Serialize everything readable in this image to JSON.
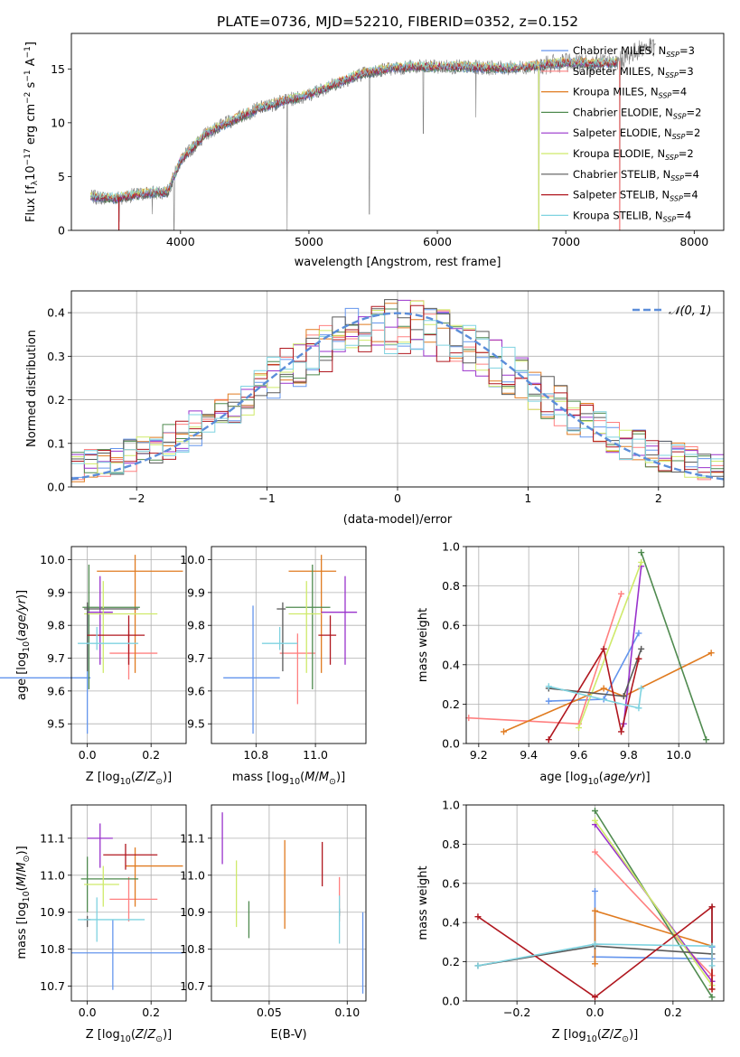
{
  "figure_title": "PLATE=0736, MJD=52210, FIBERID=0352, z=0.152",
  "colors": {
    "chabrier_miles": "#6495ED",
    "salpeter_miles": "#FF8080",
    "kroupa_miles": "#E07B20",
    "chabrier_elodie": "#4F8A4F",
    "salpeter_elodie": "#9932CC",
    "kroupa_elodie": "#CFEA6A",
    "chabrier_stelib": "#5A5A5A",
    "salpeter_stelib": "#B0171F",
    "kroupa_stelib": "#7FD3E0",
    "pink": "#E680C0",
    "data_spectrum": "#808080",
    "normal_curve": "#5B8DD9",
    "grid": "#B0B0B0"
  },
  "chart_data": [
    {
      "id": "spectrum",
      "type": "line",
      "xlabel": "wavelength [Angstrom, rest frame]",
      "ylabel": "Flux [f_λ10^-17 erg cm^-2 s^-1 A^-1]",
      "xlim": [
        3150,
        8230
      ],
      "ylim": [
        0,
        18.3
      ],
      "xticks": [
        4000,
        5000,
        6000,
        7000,
        8000
      ],
      "yticks": [
        0,
        5,
        10,
        15
      ],
      "grid": false,
      "legend_position": "top-right",
      "legend": [
        {
          "label": "Chabrier MILES, N_SSP=3",
          "color": "#6495ED"
        },
        {
          "label": "Salpeter MILES, N_SSP=3",
          "color": "#FF8080"
        },
        {
          "label": "Kroupa MILES, N_SSP=4",
          "color": "#E07B20"
        },
        {
          "label": "Chabrier ELODIE, N_SSP=2",
          "color": "#4F8A4F"
        },
        {
          "label": "Salpeter ELODIE, N_SSP=2",
          "color": "#9932CC"
        },
        {
          "label": "Kroupa ELODIE, N_SSP=2",
          "color": "#CFEA6A"
        },
        {
          "label": "Chabrier STELIB, N_SSP=4",
          "color": "#5A5A5A"
        },
        {
          "label": "Salpeter STELIB, N_SSP=4",
          "color": "#B0171F"
        },
        {
          "label": "Kroupa STELIB, N_SSP=4",
          "color": "#7FD3E0"
        }
      ],
      "continuum_anchors": [
        [
          3300,
          3.1
        ],
        [
          3500,
          3.0
        ],
        [
          3700,
          3.4
        ],
        [
          3900,
          3.6
        ],
        [
          4000,
          6.5
        ],
        [
          4200,
          9.0
        ],
        [
          4400,
          10.2
        ],
        [
          4600,
          11.3
        ],
        [
          4800,
          12.0
        ],
        [
          5000,
          12.6
        ],
        [
          5200,
          13.6
        ],
        [
          5400,
          14.5
        ],
        [
          5600,
          15.0
        ],
        [
          5800,
          15.2
        ],
        [
          6000,
          15.2
        ],
        [
          6200,
          15.2
        ],
        [
          6400,
          15.1
        ],
        [
          6600,
          15.1
        ],
        [
          6800,
          15.3
        ],
        [
          7000,
          15.6
        ],
        [
          7200,
          15.5
        ],
        [
          7400,
          15.6
        ],
        [
          7600,
          17.0
        ]
      ],
      "model_start": 3300,
      "model_end": 7400,
      "spikes": [
        [
          3520,
          0.8
        ],
        [
          3780,
          1.5
        ],
        [
          3950,
          0.0
        ],
        [
          4830,
          0.0
        ],
        [
          5470,
          1.5
        ],
        [
          5890,
          9.0
        ],
        [
          6300,
          10.5
        ],
        [
          6790,
          0.0
        ],
        [
          7420,
          0.0
        ]
      ]
    },
    {
      "id": "residuals",
      "type": "area",
      "xlabel": "(data-model)/error",
      "ylabel": "Normed distribution",
      "xlim": [
        -2.5,
        2.5
      ],
      "ylim": [
        0,
        0.45
      ],
      "xticks": [
        -2,
        -1,
        0,
        1,
        2
      ],
      "yticks": [
        0.0,
        0.1,
        0.2,
        0.3,
        0.4
      ],
      "grid": true,
      "legend_position": "top-right",
      "legend": [
        {
          "label": "𝒩(0, 1)",
          "color": "#5B8DD9"
        }
      ],
      "bin_width": 0.1,
      "bin_start": -2.5
    },
    {
      "id": "age_vs_Z",
      "type": "scatter",
      "xlabel": "Z [log10(Z/Z⊙)]",
      "ylabel": "age  [log10(age/yr)]",
      "xlim": [
        -0.05,
        0.31
      ],
      "ylim": [
        9.44,
        10.04
      ],
      "xticks": [
        0.0,
        0.2
      ],
      "yticks": [
        9.5,
        9.6,
        9.7,
        9.8,
        9.9,
        10.0
      ],
      "grid": true,
      "points": [
        {
          "color": "#6495ED",
          "x": 0.0,
          "xerr": [
            0.29,
            0.01
          ],
          "y": 9.64,
          "yerr": [
            0.17,
            0.22
          ]
        },
        {
          "color": "#FF8080",
          "x": 0.13,
          "xerr": [
            0.06,
            0.09
          ],
          "y": 9.715,
          "yerr": [
            0.08,
            0.07
          ]
        },
        {
          "color": "#E07B20",
          "x": 0.15,
          "xerr": [
            0.12,
            0.15
          ],
          "y": 9.965,
          "yerr": [
            0.31,
            0.05
          ]
        },
        {
          "color": "#4F8A4F",
          "x": 0.005,
          "xerr": [
            0.02,
            0.16
          ],
          "y": 9.855,
          "yerr": [
            0.25,
            0.13
          ]
        },
        {
          "color": "#9932CC",
          "x": 0.04,
          "xerr": [
            0.04,
            0.04
          ],
          "y": 9.84,
          "yerr": [
            0.16,
            0.11
          ]
        },
        {
          "color": "#CFEA6A",
          "x": 0.05,
          "xerr": [
            0.06,
            0.17
          ],
          "y": 9.835,
          "yerr": [
            0.18,
            0.1
          ]
        },
        {
          "color": "#5A5A5A",
          "x": 0.0,
          "xerr": [
            0.01,
            0.16
          ],
          "y": 9.85,
          "yerr": [
            0.19,
            0.02
          ]
        },
        {
          "color": "#B0171F",
          "x": 0.13,
          "xerr": [
            0.13,
            0.05
          ],
          "y": 9.77,
          "yerr": [
            0.09,
            0.06
          ]
        },
        {
          "color": "#7FD3E0",
          "x": 0.03,
          "xerr": [
            0.06,
            0.13
          ],
          "y": 9.745,
          "yerr": [
            0.02,
            0.05
          ]
        }
      ]
    },
    {
      "id": "age_vs_mass",
      "type": "scatter",
      "xlabel": "mass [log10(M/M⊙)]",
      "ylabel": "",
      "xlim": [
        10.65,
        11.17
      ],
      "ylim": [
        9.44,
        10.04
      ],
      "xticks": [
        10.8,
        11.0
      ],
      "yticks": [
        9.5,
        9.6,
        9.7,
        9.8,
        9.9,
        10.0
      ],
      "grid": true,
      "points": [
        {
          "color": "#6495ED",
          "x": 10.79,
          "xerr": [
            0.1,
            0.09
          ],
          "y": 9.64,
          "yerr": [
            0.17,
            0.22
          ]
        },
        {
          "color": "#FF8080",
          "x": 10.94,
          "xerr": [
            0.06,
            0.06
          ],
          "y": 9.715,
          "yerr": [
            0.155,
            0.06
          ]
        },
        {
          "color": "#E07B20",
          "x": 11.02,
          "xerr": [
            0.11,
            0.05
          ],
          "y": 9.965,
          "yerr": [
            0.31,
            0.05
          ]
        },
        {
          "color": "#4F8A4F",
          "x": 10.99,
          "xerr": [
            0.09,
            0.06
          ],
          "y": 9.855,
          "yerr": [
            0.25,
            0.13
          ]
        },
        {
          "color": "#9932CC",
          "x": 11.1,
          "xerr": [
            0.08,
            0.04
          ],
          "y": 9.84,
          "yerr": [
            0.16,
            0.11
          ]
        },
        {
          "color": "#CFEA6A",
          "x": 10.97,
          "xerr": [
            0.06,
            0.05
          ],
          "y": 9.835,
          "yerr": [
            0.18,
            0.1
          ]
        },
        {
          "color": "#5A5A5A",
          "x": 10.89,
          "xerr": [
            0.02,
            0.01
          ],
          "y": 9.85,
          "yerr": [
            0.19,
            0.02
          ]
        },
        {
          "color": "#B0171F",
          "x": 11.05,
          "xerr": [
            0.04,
            0.02
          ],
          "y": 9.77,
          "yerr": [
            0.09,
            0.06
          ]
        },
        {
          "color": "#7FD3E0",
          "x": 10.88,
          "xerr": [
            0.06,
            0.06
          ],
          "y": 9.745,
          "yerr": [
            0.02,
            0.05
          ]
        }
      ]
    },
    {
      "id": "weight_vs_age",
      "type": "line",
      "xlabel": "age  [log10(age/yr)]",
      "ylabel": "mass weight",
      "xlim": [
        9.15,
        10.18
      ],
      "ylim": [
        0,
        1.0
      ],
      "xticks": [
        9.2,
        9.4,
        9.6,
        9.8,
        10.0
      ],
      "yticks": [
        0.0,
        0.2,
        0.4,
        0.6,
        0.8,
        1.0
      ],
      "grid": true,
      "series": [
        {
          "color": "#6495ED",
          "x": [
            9.48,
            9.7,
            9.84
          ],
          "y": [
            0.215,
            0.225,
            0.56
          ]
        },
        {
          "color": "#FF8080",
          "x": [
            9.16,
            9.6,
            9.77
          ],
          "y": [
            0.13,
            0.1,
            0.76
          ]
        },
        {
          "color": "#E07B20",
          "x": [
            9.3,
            9.7,
            9.78,
            10.13
          ],
          "y": [
            0.06,
            0.28,
            0.24,
            0.46
          ]
        },
        {
          "color": "#4F8A4F",
          "x": [
            9.85,
            10.11
          ],
          "y": [
            0.97,
            0.02
          ]
        },
        {
          "color": "#9932CC",
          "x": [
            9.78,
            9.85
          ],
          "y": [
            0.1,
            0.9
          ]
        },
        {
          "color": "#CFEA6A",
          "x": [
            9.6,
            9.85
          ],
          "y": [
            0.08,
            0.92
          ]
        },
        {
          "color": "#5A5A5A",
          "x": [
            9.48,
            9.78,
            9.85
          ],
          "y": [
            0.28,
            0.24,
            0.48
          ]
        },
        {
          "color": "#B0171F",
          "x": [
            9.48,
            9.7,
            9.77,
            9.84
          ],
          "y": [
            0.02,
            0.48,
            0.06,
            0.43
          ]
        },
        {
          "color": "#7FD3E0",
          "x": [
            9.48,
            9.84,
            9.85
          ],
          "y": [
            0.29,
            0.18,
            0.28
          ]
        }
      ]
    },
    {
      "id": "mass_vs_Z",
      "type": "scatter",
      "xlabel": "Z [log10(Z/Z⊙)]",
      "ylabel": "mass [log10(M/M⊙)]",
      "xlim": [
        -0.05,
        0.31
      ],
      "ylim": [
        10.66,
        11.19
      ],
      "xticks": [
        0.0,
        0.2
      ],
      "yticks": [
        10.7,
        10.8,
        10.9,
        11.0,
        11.1
      ],
      "grid": true,
      "points": [
        {
          "color": "#6495ED",
          "x": 0.08,
          "xerr": [
            0.13,
            0.22
          ],
          "y": 10.79,
          "yerr": [
            0.1,
            0.09
          ]
        },
        {
          "color": "#FF8080",
          "x": 0.13,
          "xerr": [
            0.06,
            0.09
          ],
          "y": 10.935,
          "yerr": [
            0.06,
            0.06
          ]
        },
        {
          "color": "#E07B20",
          "x": 0.15,
          "xerr": [
            0.03,
            0.15
          ],
          "y": 11.025,
          "yerr": [
            0.11,
            0.05
          ]
        },
        {
          "color": "#4F8A4F",
          "x": 0.0,
          "xerr": [
            0.02,
            0.16
          ],
          "y": 10.99,
          "yerr": [
            0.09,
            0.06
          ]
        },
        {
          "color": "#9932CC",
          "x": 0.04,
          "xerr": [
            0.04,
            0.04
          ],
          "y": 11.1,
          "yerr": [
            0.08,
            0.04
          ]
        },
        {
          "color": "#CFEA6A",
          "x": 0.05,
          "xerr": [
            0.06,
            0.05
          ],
          "y": 10.975,
          "yerr": [
            0.06,
            0.05
          ]
        },
        {
          "color": "#5A5A5A",
          "x": 0.0,
          "xerr": [
            0.01,
            0.01
          ],
          "y": 10.88,
          "yerr": [
            0.02,
            0.01
          ]
        },
        {
          "color": "#B0171F",
          "x": 0.12,
          "xerr": [
            0.07,
            0.1
          ],
          "y": 11.055,
          "yerr": [
            0.04,
            0.03
          ]
        },
        {
          "color": "#7FD3E0",
          "x": 0.03,
          "xerr": [
            0.06,
            0.15
          ],
          "y": 10.88,
          "yerr": [
            0.06,
            0.06
          ]
        }
      ]
    },
    {
      "id": "mass_vs_ebv",
      "type": "scatter",
      "xlabel": "E(B-V)",
      "ylabel": "",
      "xlim": [
        0.013,
        0.112
      ],
      "ylim": [
        10.66,
        11.19
      ],
      "xticks": [
        0.05,
        0.1
      ],
      "yticks": [
        10.7,
        10.8,
        10.9,
        11.0,
        11.1
      ],
      "grid": true,
      "points": [
        {
          "color": "#6495ED",
          "x": 0.11,
          "xerr": [
            0,
            0
          ],
          "y": 10.79,
          "yerr": [
            0.11,
            0.11
          ]
        },
        {
          "color": "#FF8080",
          "x": 0.095,
          "xerr": [
            0,
            0
          ],
          "y": 10.935,
          "yerr": [
            0.06,
            0.06
          ]
        },
        {
          "color": "#E07B20",
          "x": 0.06,
          "xerr": [
            0,
            0
          ],
          "y": 11.025,
          "yerr": [
            0.17,
            0.07
          ]
        },
        {
          "color": "#4F8A4F",
          "x": 0.037,
          "xerr": [
            0,
            0
          ],
          "y": 10.89,
          "yerr": [
            0.06,
            0.04
          ]
        },
        {
          "color": "#9932CC",
          "x": 0.02,
          "xerr": [
            0,
            0
          ],
          "y": 11.1,
          "yerr": [
            0.07,
            0.07
          ]
        },
        {
          "color": "#CFEA6A",
          "x": 0.029,
          "xerr": [
            0,
            0
          ],
          "y": 10.95,
          "yerr": [
            0.09,
            0.09
          ]
        },
        {
          "color": "#5A5A5A",
          "x": 0.095,
          "xerr": [
            0,
            0
          ],
          "y": 10.9,
          "yerr": [
            0.01,
            0.01
          ]
        },
        {
          "color": "#B0171F",
          "x": 0.084,
          "xerr": [
            0,
            0
          ],
          "y": 11.03,
          "yerr": [
            0.06,
            0.06
          ]
        },
        {
          "color": "#7FD3E0",
          "x": 0.095,
          "xerr": [
            0,
            0
          ],
          "y": 10.88,
          "yerr": [
            0.065,
            0.065
          ]
        }
      ]
    },
    {
      "id": "weight_vs_Z",
      "type": "line",
      "xlabel": "Z [log10(Z/Z⊙)]",
      "ylabel": "mass weight",
      "xlim": [
        -0.33,
        0.33
      ],
      "ylim": [
        0,
        1.0
      ],
      "xticks": [
        -0.2,
        0.0,
        0.2
      ],
      "yticks": [
        0.0,
        0.2,
        0.4,
        0.6,
        0.8,
        1.0
      ],
      "grid": true,
      "series": [
        {
          "color": "#6495ED",
          "x": [
            0.0,
            0.0,
            0.3,
            0.3
          ],
          "y": [
            0.56,
            0.225,
            0.215,
            0.275
          ]
        },
        {
          "color": "#FF8080",
          "x": [
            0.0,
            0.3,
            0.3
          ],
          "y": [
            0.76,
            0.13,
            0.1
          ]
        },
        {
          "color": "#E07B20",
          "x": [
            0.0,
            0.0,
            0.3,
            0.3
          ],
          "y": [
            0.19,
            0.46,
            0.28,
            0.06
          ]
        },
        {
          "color": "#4F8A4F",
          "x": [
            0.0,
            0.3
          ],
          "y": [
            0.97,
            0.02
          ]
        },
        {
          "color": "#9932CC",
          "x": [
            0.0,
            0.3
          ],
          "y": [
            0.9,
            0.1
          ]
        },
        {
          "color": "#CFEA6A",
          "x": [
            0.0,
            0.3
          ],
          "y": [
            0.92,
            0.08
          ]
        },
        {
          "color": "#5A5A5A",
          "x": [
            -0.3,
            0.0,
            0.3,
            0.3
          ],
          "y": [
            0.18,
            0.28,
            0.24,
            0.48
          ]
        },
        {
          "color": "#B0171F",
          "x": [
            -0.3,
            0.0,
            0.3,
            0.3
          ],
          "y": [
            0.43,
            0.02,
            0.48,
            0.06
          ]
        },
        {
          "color": "#7FD3E0",
          "x": [
            -0.3,
            0.0,
            0.3,
            0.3
          ],
          "y": [
            0.18,
            0.29,
            0.28,
            0.18
          ]
        }
      ]
    }
  ]
}
